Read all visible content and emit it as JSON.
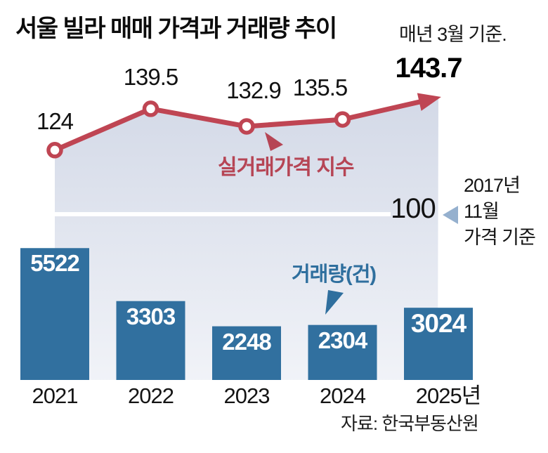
{
  "title": "서울 빌라 매매 가격과 거래량 추이",
  "subtitle": "매년 3월 기준.",
  "source": "자료: 한국부동산원",
  "colors": {
    "line": "#bf4553",
    "index_label_text": "#b64555",
    "bar": "#31709f",
    "volume_label_text": "#2f6f9e",
    "area_top": "#d3d9e7",
    "area_bottom": "#f1f3f8",
    "baseline_line": "#ffffff",
    "baseline_pointer": "#95b0ce",
    "bar_value_text": "#ffffff",
    "text": "#111111"
  },
  "chart_data": [
    {
      "type": "line",
      "name": "실거래가격 지수",
      "categories": [
        "2021",
        "2022",
        "2023",
        "2024",
        "2025"
      ],
      "values": [
        124,
        139.5,
        132.9,
        135.5,
        143.7
      ],
      "value_labels": [
        "124",
        "139.5",
        "132.9",
        "135.5",
        "143.7"
      ],
      "baseline": {
        "value": 100,
        "label": "100",
        "note_lines": [
          "2017년",
          "11월",
          "가격 기준"
        ]
      },
      "ylim": [
        95,
        150
      ],
      "grid": false,
      "legend_position": "inline-annotation",
      "style": "area-under-line, arrow-end, last-value-bold"
    },
    {
      "type": "bar",
      "name": "거래량(건)",
      "categories": [
        "2021",
        "2022",
        "2023",
        "2024",
        "2025년"
      ],
      "values": [
        5522,
        3303,
        2248,
        2304,
        3024
      ],
      "value_labels": [
        "5522",
        "3303",
        "2248",
        "2304",
        "3024"
      ],
      "grid": false,
      "legend_position": "inline-annotation",
      "style": "value-inside-top, last-value-bold"
    }
  ]
}
